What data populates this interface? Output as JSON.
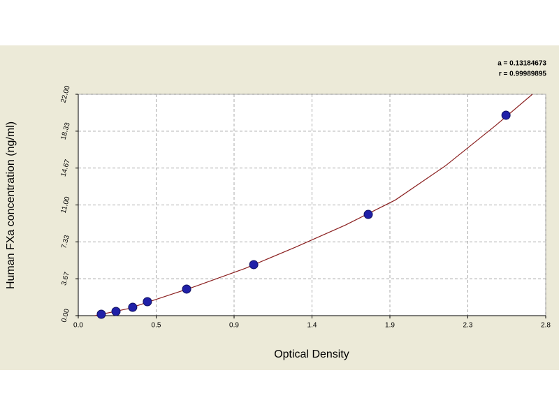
{
  "chart_data": {
    "type": "scatter",
    "xlabel": "Optical Density",
    "ylabel": "Human FXa concentration (ng/ml)",
    "annotations": [
      "a = 0.13184673",
      "r = 0.99989895"
    ],
    "xlim": [
      0,
      2.8
    ],
    "ylim": [
      0,
      22
    ],
    "xticks": [
      {
        "value": 0,
        "label": "0.0"
      },
      {
        "value": 0.4667,
        "label": "0.5"
      },
      {
        "value": 0.9333,
        "label": "0.9"
      },
      {
        "value": 1.4,
        "label": "1.4"
      },
      {
        "value": 1.8667,
        "label": "1.9"
      },
      {
        "value": 2.3333,
        "label": "2.3"
      },
      {
        "value": 2.8,
        "label": "2.8"
      }
    ],
    "yticks": [
      {
        "value": 0,
        "label": "0.00"
      },
      {
        "value": 3.6667,
        "label": "3.67"
      },
      {
        "value": 7.3333,
        "label": "7.33"
      },
      {
        "value": 11,
        "label": "11.00"
      },
      {
        "value": 14.6667,
        "label": "14.67"
      },
      {
        "value": 18.3333,
        "label": "18.33"
      },
      {
        "value": 22,
        "label": "22.00"
      }
    ],
    "grid": true,
    "series": [
      {
        "style": "points",
        "color": "#2020a8",
        "x": [
          0.138,
          0.226,
          0.326,
          0.414,
          0.649,
          1.051,
          1.737,
          2.562
        ],
        "values": [
          0.14,
          0.42,
          0.83,
          1.39,
          2.64,
          5.07,
          10.06,
          19.92
        ]
      },
      {
        "style": "line",
        "color": "#8b2020",
        "x": [
          0.1,
          0.3,
          0.5,
          0.7,
          1.0,
          1.3,
          1.6,
          1.9,
          2.2,
          2.5,
          2.72
        ],
        "values": [
          0,
          0.7,
          1.8,
          2.9,
          4.7,
          6.8,
          9.0,
          11.5,
          14.9,
          18.9,
          22.0
        ]
      }
    ]
  }
}
